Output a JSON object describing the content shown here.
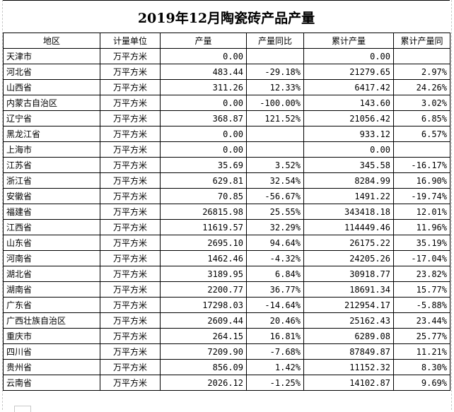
{
  "title": "2019年12月陶瓷砖产品产量",
  "columns": [
    "地区",
    "计量单位",
    "产量",
    "产量同比",
    "累计产量",
    "累计产量同"
  ],
  "rows": [
    {
      "region": "天津市",
      "unit": "万平方米",
      "output": "0.00",
      "yoy": "",
      "cumulative": "0.00",
      "cumulative_yoy": ""
    },
    {
      "region": "河北省",
      "unit": "万平方米",
      "output": "483.44",
      "yoy": "-29.18%",
      "cumulative": "21279.65",
      "cumulative_yoy": "2.97%"
    },
    {
      "region": "山西省",
      "unit": "万平方米",
      "output": "311.26",
      "yoy": "12.33%",
      "cumulative": "6417.42",
      "cumulative_yoy": "24.26%"
    },
    {
      "region": "内蒙古自治区",
      "unit": "万平方米",
      "output": "0.00",
      "yoy": "-100.00%",
      "cumulative": "143.60",
      "cumulative_yoy": "3.02%"
    },
    {
      "region": "辽宁省",
      "unit": "万平方米",
      "output": "368.87",
      "yoy": "121.52%",
      "cumulative": "21056.42",
      "cumulative_yoy": "6.85%"
    },
    {
      "region": "黑龙江省",
      "unit": "万平方米",
      "output": "0.00",
      "yoy": "",
      "cumulative": "933.12",
      "cumulative_yoy": "6.57%"
    },
    {
      "region": "上海市",
      "unit": "万平方米",
      "output": "0.00",
      "yoy": "",
      "cumulative": "0.00",
      "cumulative_yoy": ""
    },
    {
      "region": "江苏省",
      "unit": "万平方米",
      "output": "35.69",
      "yoy": "3.52%",
      "cumulative": "345.58",
      "cumulative_yoy": "-16.17%"
    },
    {
      "region": "浙江省",
      "unit": "万平方米",
      "output": "629.81",
      "yoy": "32.54%",
      "cumulative": "8284.99",
      "cumulative_yoy": "16.90%"
    },
    {
      "region": "安徽省",
      "unit": "万平方米",
      "output": "70.85",
      "yoy": "-56.67%",
      "cumulative": "1491.22",
      "cumulative_yoy": "-19.74%"
    },
    {
      "region": "福建省",
      "unit": "万平方米",
      "output": "26815.98",
      "yoy": "25.55%",
      "cumulative": "343418.18",
      "cumulative_yoy": "12.01%"
    },
    {
      "region": "江西省",
      "unit": "万平方米",
      "output": "11619.57",
      "yoy": "32.29%",
      "cumulative": "114449.46",
      "cumulative_yoy": "11.96%"
    },
    {
      "region": "山东省",
      "unit": "万平方米",
      "output": "2695.10",
      "yoy": "94.64%",
      "cumulative": "26175.22",
      "cumulative_yoy": "35.19%"
    },
    {
      "region": "河南省",
      "unit": "万平方米",
      "output": "1462.46",
      "yoy": "-4.32%",
      "cumulative": "24205.26",
      "cumulative_yoy": "-17.04%"
    },
    {
      "region": "湖北省",
      "unit": "万平方米",
      "output": "3189.95",
      "yoy": "6.84%",
      "cumulative": "30918.77",
      "cumulative_yoy": "23.82%"
    },
    {
      "region": "湖南省",
      "unit": "万平方米",
      "output": "2200.77",
      "yoy": "36.77%",
      "cumulative": "18691.34",
      "cumulative_yoy": "15.77%"
    },
    {
      "region": "广东省",
      "unit": "万平方米",
      "output": "17298.03",
      "yoy": "-14.64%",
      "cumulative": "212954.17",
      "cumulative_yoy": "-5.88%"
    },
    {
      "region": "广西壮族自治区",
      "unit": "万平方米",
      "output": "2609.44",
      "yoy": "20.46%",
      "cumulative": "25162.43",
      "cumulative_yoy": "23.44%"
    },
    {
      "region": "重庆市",
      "unit": "万平方米",
      "output": "264.15",
      "yoy": "16.81%",
      "cumulative": "6289.08",
      "cumulative_yoy": "25.77%"
    },
    {
      "region": "四川省",
      "unit": "万平方米",
      "output": "7209.90",
      "yoy": "-7.68%",
      "cumulative": "87849.87",
      "cumulative_yoy": "11.21%"
    },
    {
      "region": "贵州省",
      "unit": "万平方米",
      "output": "856.09",
      "yoy": "1.42%",
      "cumulative": "11152.32",
      "cumulative_yoy": "8.30%"
    },
    {
      "region": "云南省",
      "unit": "万平方米",
      "output": "2026.12",
      "yoy": "-1.25%",
      "cumulative": "14102.87",
      "cumulative_yoy": "9.69%"
    }
  ]
}
